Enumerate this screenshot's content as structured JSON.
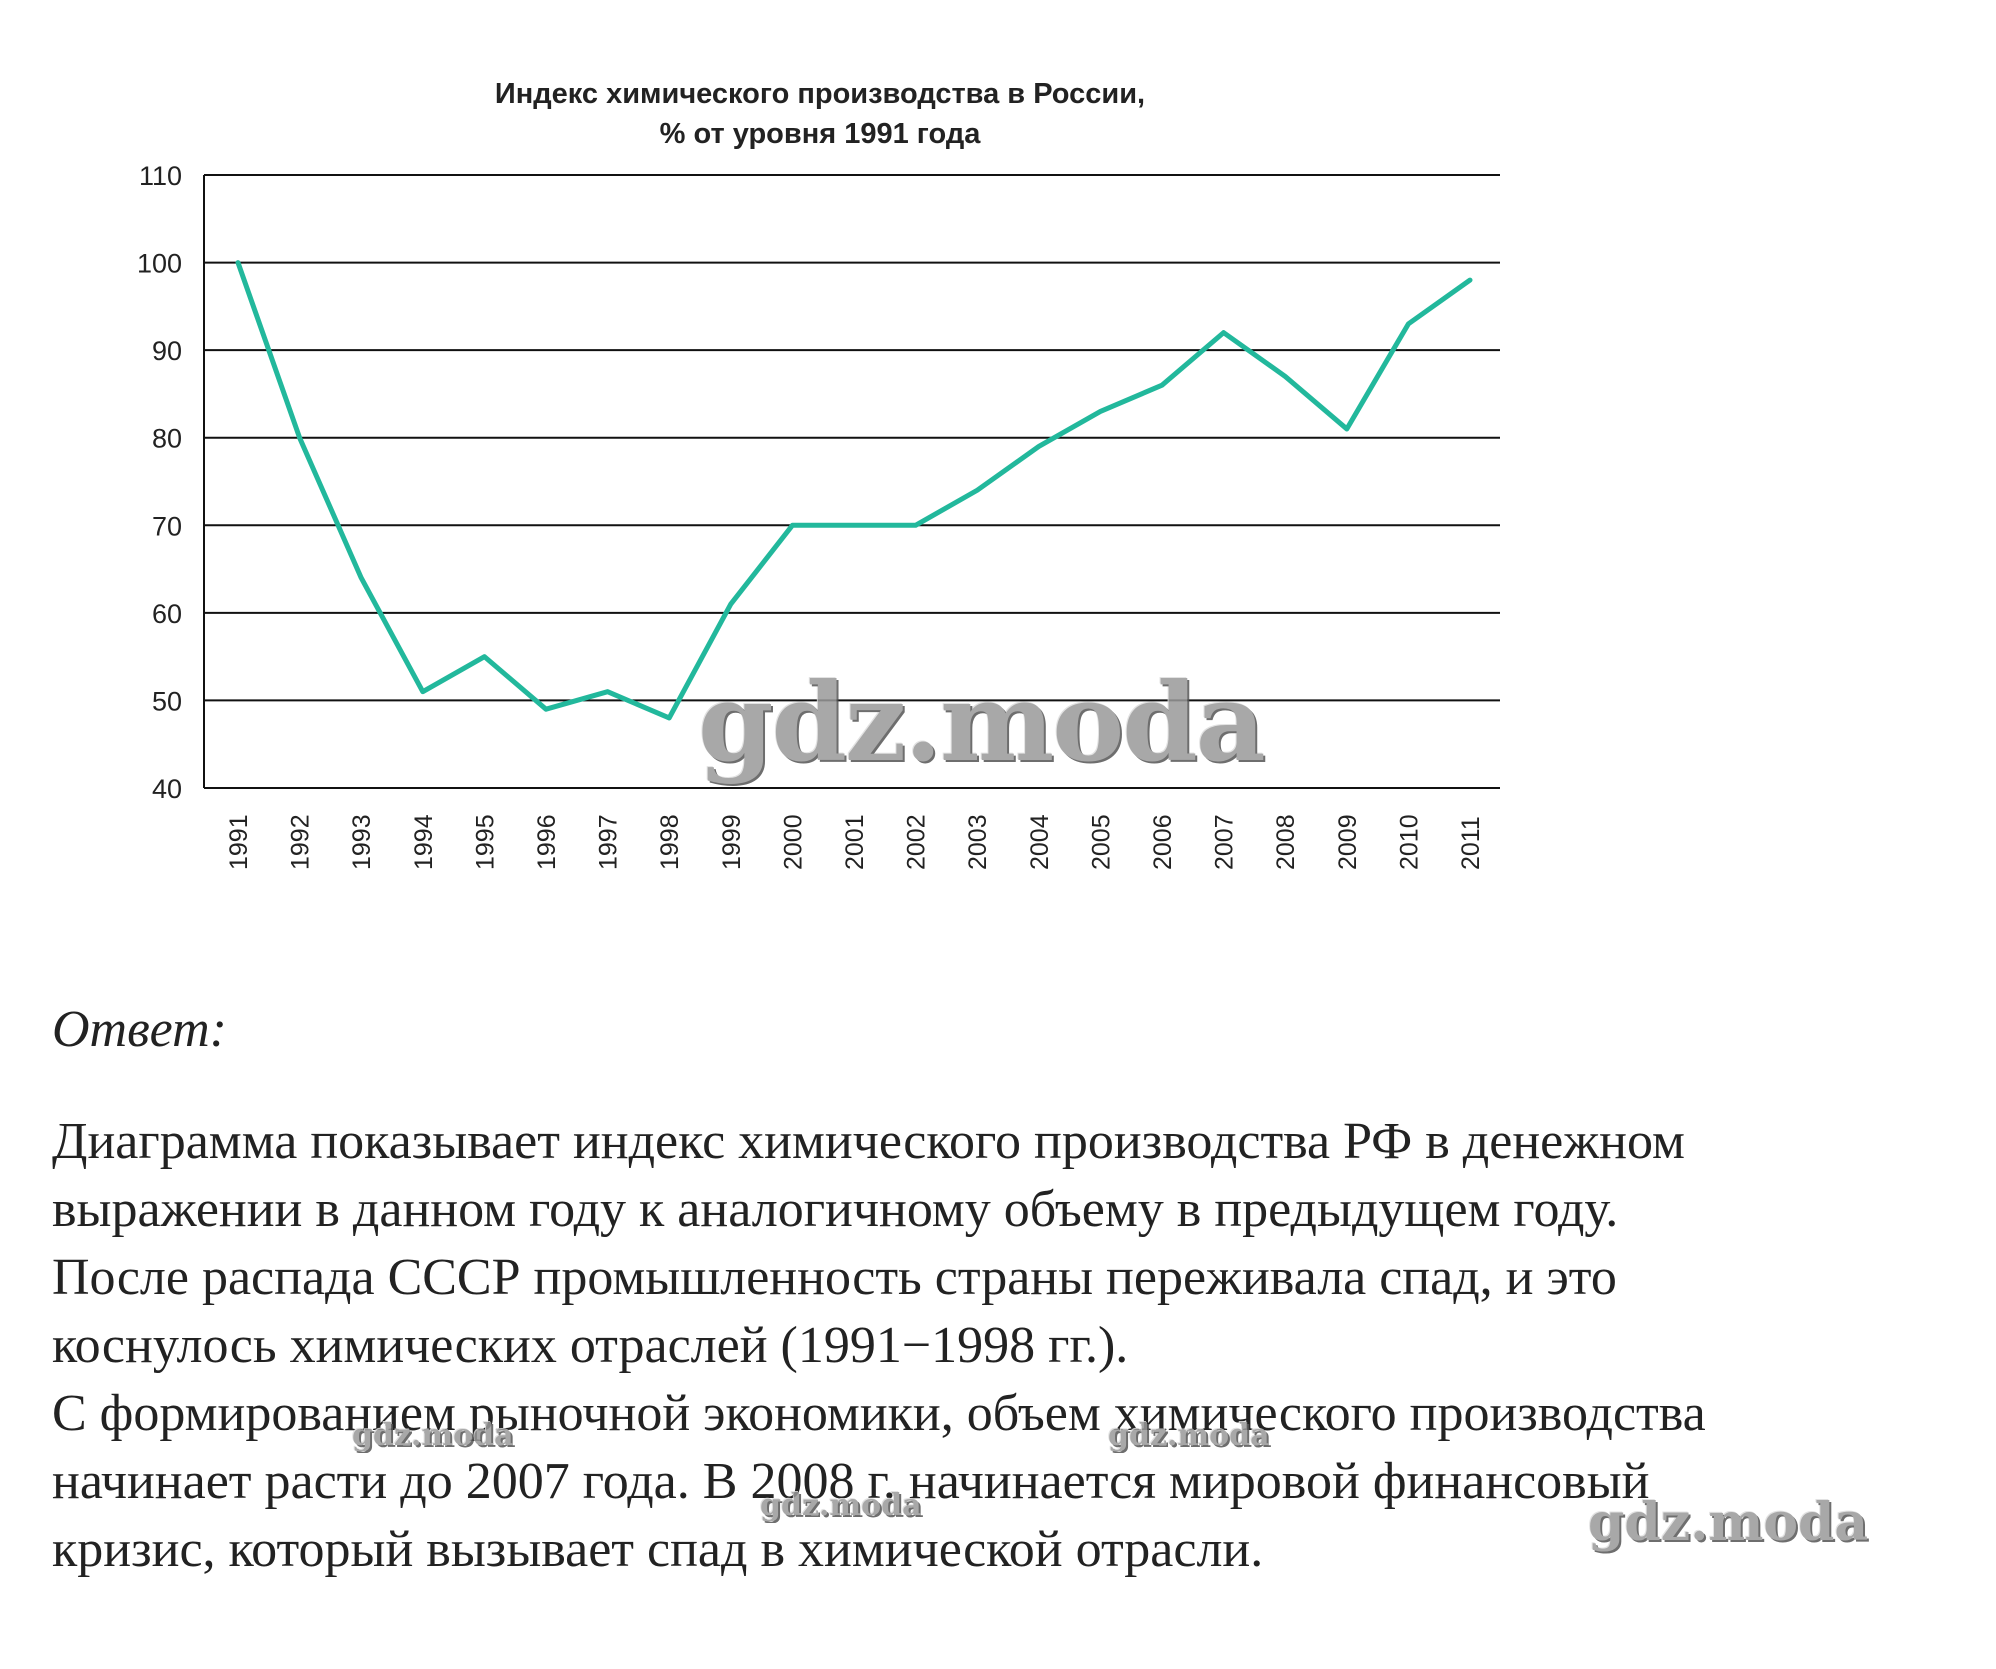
{
  "chart_data": {
    "type": "line",
    "title": "Индекс химического производства в России,",
    "subtitle": "% от уровня 1991 года",
    "x": [
      "1991",
      "1992",
      "1993",
      "1994",
      "1995",
      "1996",
      "1997",
      "1998",
      "1999",
      "2000",
      "2001",
      "2002",
      "2003",
      "2004",
      "2005",
      "2006",
      "2007",
      "2008",
      "2009",
      "2010",
      "2011"
    ],
    "series": [
      {
        "values": [
          100,
          80,
          64,
          51,
          55,
          49,
          51,
          48,
          61,
          70,
          70,
          70,
          74,
          79,
          83,
          86,
          92,
          87,
          81,
          93,
          98
        ]
      }
    ],
    "ylim": [
      40,
      110
    ],
    "yticks": [
      "40",
      "50",
      "60",
      "70",
      "80",
      "90",
      "100",
      "110"
    ],
    "grid": true,
    "line_color": "#22b89c"
  },
  "answer": {
    "heading": "Ответ:",
    "lines": [
      "Диаграмма показывает индекс химического производства РФ в денежном",
      "выражении в данном году к аналогичному объему в предыдущем году.",
      "После распада СССР промышленность страны переживала спад, и это",
      "коснулось химических отраслей (1991−1998 гг.).",
      "С формированием рыночной экономики, объем химического производства",
      "начинает расти до 2007 года. В 2008 г. начинается мировой финансовый",
      "кризис, который вызывает спад в химической отрасли."
    ]
  },
  "watermark": "gdz.moda"
}
